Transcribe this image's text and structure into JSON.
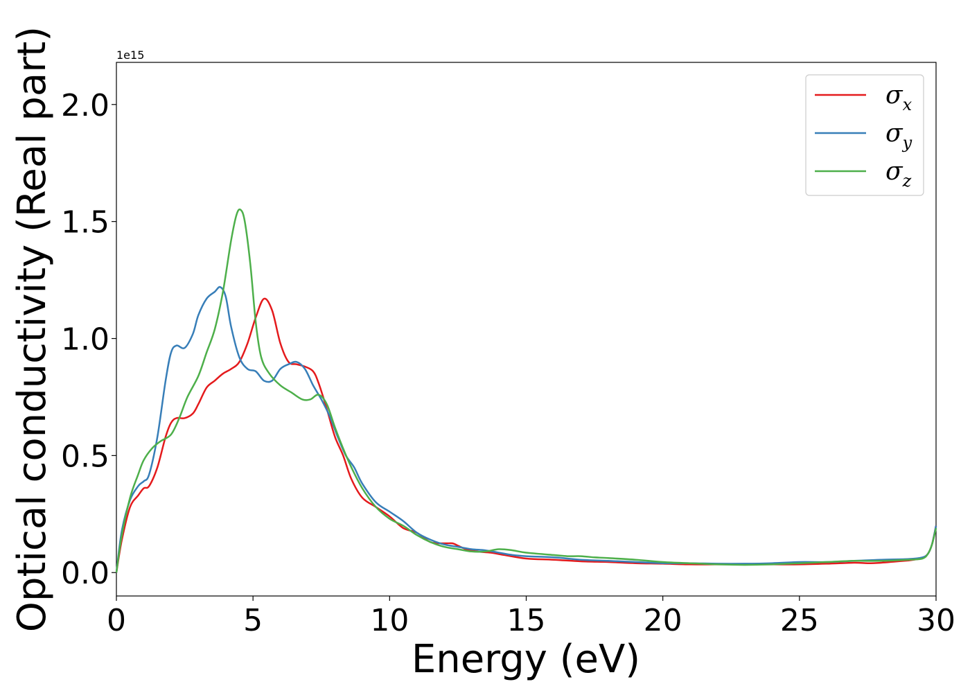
{
  "chart_data": {
    "type": "line",
    "xlabel": "Energy (eV)",
    "ylabel": "Optical conductivity (Real part)",
    "y_offset_label": "1e15",
    "xlim": [
      0,
      30
    ],
    "ylim": [
      -0.1,
      2.18
    ],
    "xticks": [
      0,
      5,
      10,
      15,
      20,
      25,
      30
    ],
    "xtick_labels": [
      "0",
      "5",
      "10",
      "15",
      "20",
      "25",
      "30"
    ],
    "yticks": [
      0.0,
      0.5,
      1.0,
      1.5,
      2.0
    ],
    "ytick_labels": [
      "0.0",
      "0.5",
      "1.0",
      "1.5",
      "2.0"
    ],
    "grid": false,
    "legend_position": "top-right",
    "series": [
      {
        "name": "σx",
        "symbol": "σ",
        "subscript": "x",
        "color": "#e41a1c",
        "x": [
          0,
          0.2,
          0.5,
          0.8,
          1.0,
          1.2,
          1.5,
          1.8,
          2.0,
          2.2,
          2.5,
          2.8,
          3.0,
          3.3,
          3.6,
          3.9,
          4.2,
          4.5,
          4.8,
          5.1,
          5.4,
          5.7,
          6.0,
          6.3,
          6.6,
          6.9,
          7.2,
          7.4,
          7.7,
          8.0,
          8.3,
          8.6,
          9.0,
          9.5,
          10.0,
          10.5,
          11.0,
          11.5,
          12.0,
          12.3,
          12.5,
          12.8,
          13.2,
          13.7,
          14.2,
          15.0,
          16.0,
          17.0,
          18.0,
          19.0,
          20.0,
          21.0,
          22.0,
          23.0,
          24.0,
          25.0,
          26.0,
          27.0,
          27.5,
          28.0,
          28.5,
          29.0,
          29.3,
          29.5,
          29.7,
          29.85,
          30.0
        ],
        "y": [
          0.0,
          0.14,
          0.28,
          0.33,
          0.36,
          0.37,
          0.45,
          0.58,
          0.64,
          0.66,
          0.66,
          0.68,
          0.72,
          0.79,
          0.82,
          0.85,
          0.87,
          0.9,
          0.98,
          1.09,
          1.17,
          1.12,
          0.98,
          0.9,
          0.89,
          0.88,
          0.86,
          0.81,
          0.7,
          0.58,
          0.5,
          0.4,
          0.32,
          0.28,
          0.24,
          0.19,
          0.17,
          0.13,
          0.125,
          0.125,
          0.115,
          0.1,
          0.09,
          0.085,
          0.075,
          0.06,
          0.055,
          0.048,
          0.045,
          0.04,
          0.038,
          0.035,
          0.035,
          0.035,
          0.035,
          0.035,
          0.038,
          0.042,
          0.04,
          0.042,
          0.047,
          0.052,
          0.057,
          0.062,
          0.08,
          0.12,
          0.2
        ]
      },
      {
        "name": "σy",
        "symbol": "σ",
        "subscript": "y",
        "color": "#377eb8",
        "x": [
          0,
          0.2,
          0.5,
          0.8,
          1.0,
          1.2,
          1.5,
          1.8,
          2.0,
          2.2,
          2.5,
          2.8,
          3.0,
          3.3,
          3.6,
          3.8,
          4.0,
          4.2,
          4.5,
          4.8,
          5.1,
          5.4,
          5.7,
          6.0,
          6.3,
          6.6,
          6.9,
          7.2,
          7.5,
          7.8,
          8.1,
          8.4,
          8.7,
          9.0,
          9.5,
          10.0,
          10.5,
          11.0,
          11.5,
          12.0,
          12.5,
          13.0,
          13.5,
          14.0,
          14.5,
          15.0,
          16.0,
          17.0,
          18.0,
          19.0,
          20.0,
          21.0,
          22.0,
          23.0,
          24.0,
          25.0,
          26.0,
          27.0,
          28.0,
          29.0,
          29.5,
          29.7,
          29.85,
          30.0
        ],
        "y": [
          0.0,
          0.18,
          0.31,
          0.37,
          0.39,
          0.42,
          0.58,
          0.82,
          0.94,
          0.97,
          0.96,
          1.02,
          1.1,
          1.17,
          1.2,
          1.22,
          1.18,
          1.05,
          0.92,
          0.87,
          0.86,
          0.82,
          0.82,
          0.87,
          0.89,
          0.9,
          0.87,
          0.8,
          0.74,
          0.67,
          0.58,
          0.5,
          0.45,
          0.38,
          0.3,
          0.26,
          0.22,
          0.17,
          0.14,
          0.12,
          0.11,
          0.1,
          0.095,
          0.085,
          0.075,
          0.07,
          0.065,
          0.055,
          0.05,
          0.045,
          0.04,
          0.04,
          0.038,
          0.038,
          0.04,
          0.045,
          0.045,
          0.05,
          0.055,
          0.058,
          0.065,
          0.08,
          0.12,
          0.2
        ]
      },
      {
        "name": "σz",
        "symbol": "σ",
        "subscript": "z",
        "color": "#4daf4a",
        "x": [
          0,
          0.2,
          0.5,
          0.8,
          1.0,
          1.3,
          1.6,
          2.0,
          2.3,
          2.6,
          3.0,
          3.3,
          3.6,
          3.9,
          4.2,
          4.4,
          4.55,
          4.7,
          4.9,
          5.1,
          5.3,
          5.6,
          6.0,
          6.4,
          6.8,
          7.1,
          7.4,
          7.7,
          8.0,
          8.3,
          8.6,
          9.0,
          9.5,
          10.0,
          10.5,
          11.0,
          11.5,
          12.0,
          12.5,
          13.0,
          13.5,
          14.0,
          14.5,
          15.0,
          16.0,
          16.5,
          17.0,
          17.5,
          18.0,
          19.0,
          20.0,
          21.0,
          22.0,
          23.0,
          24.0,
          25.0,
          26.0,
          27.0,
          28.0,
          29.0,
          29.5,
          29.7,
          29.85,
          30.0
        ],
        "y": [
          0.0,
          0.16,
          0.32,
          0.42,
          0.48,
          0.53,
          0.56,
          0.59,
          0.66,
          0.75,
          0.84,
          0.94,
          1.04,
          1.2,
          1.42,
          1.53,
          1.55,
          1.5,
          1.32,
          1.07,
          0.92,
          0.85,
          0.8,
          0.77,
          0.74,
          0.74,
          0.76,
          0.72,
          0.62,
          0.53,
          0.45,
          0.36,
          0.28,
          0.23,
          0.2,
          0.16,
          0.13,
          0.11,
          0.1,
          0.09,
          0.09,
          0.1,
          0.095,
          0.085,
          0.075,
          0.07,
          0.07,
          0.065,
          0.062,
          0.055,
          0.045,
          0.04,
          0.035,
          0.033,
          0.035,
          0.04,
          0.045,
          0.05,
          0.05,
          0.055,
          0.06,
          0.08,
          0.12,
          0.19
        ]
      }
    ]
  }
}
